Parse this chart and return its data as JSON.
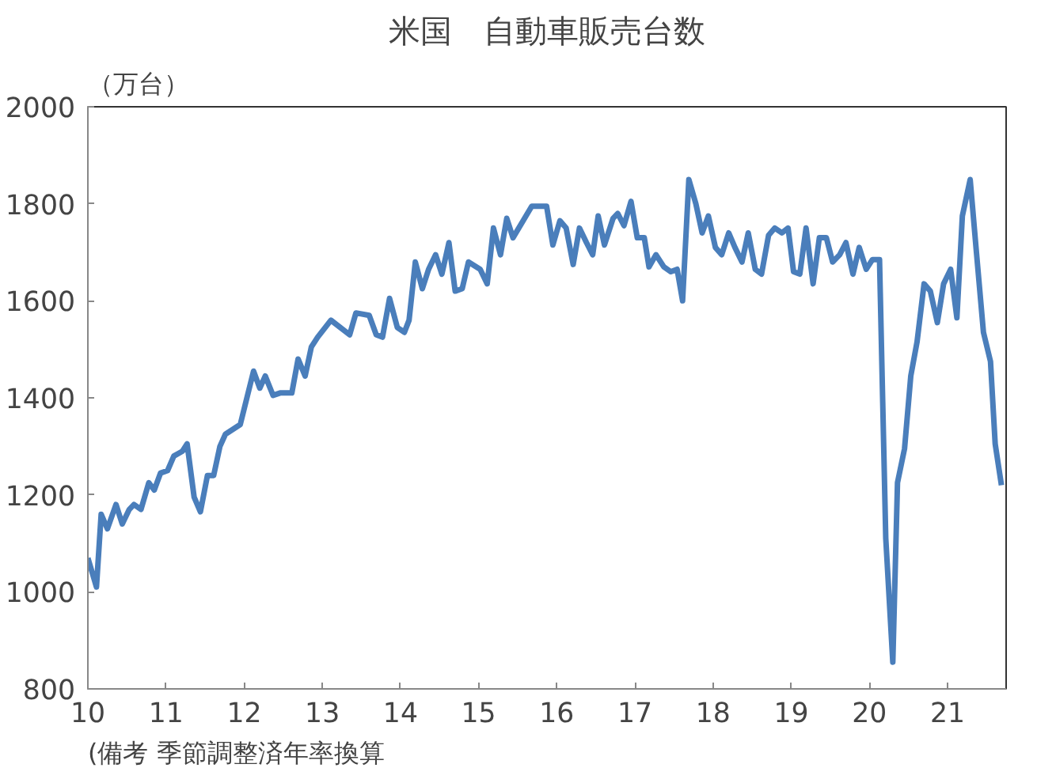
{
  "chart_data": {
    "type": "line",
    "title": "米国　自動車販売台数",
    "ylabel": "（万台）",
    "annotations": [
      "(備考 季節調整済年率換算"
    ],
    "x": [
      10.0,
      10.11,
      10.17,
      10.25,
      10.36,
      10.44,
      10.53,
      10.59,
      10.68,
      10.78,
      10.85,
      10.93,
      11.02,
      11.1,
      11.21,
      11.27,
      11.36,
      11.44,
      11.53,
      11.61,
      11.69,
      11.76,
      11.95,
      12.12,
      12.2,
      12.27,
      12.37,
      12.46,
      12.61,
      12.69,
      12.78,
      12.86,
      12.94,
      13.11,
      13.35,
      13.43,
      13.6,
      13.69,
      13.77,
      13.86,
      13.96,
      14.05,
      14.11,
      14.19,
      14.28,
      14.36,
      14.45,
      14.53,
      14.62,
      14.7,
      14.79,
      14.87,
      15.02,
      15.11,
      15.19,
      15.28,
      15.36,
      15.44,
      15.68,
      15.76,
      15.87,
      15.95,
      16.04,
      16.12,
      16.21,
      16.29,
      16.38,
      16.46,
      16.53,
      16.61,
      16.72,
      16.78,
      16.86,
      16.95,
      17.03,
      17.12,
      17.18,
      17.27,
      17.37,
      17.46,
      17.54,
      17.61,
      17.69,
      17.78,
      17.86,
      17.94,
      18.03,
      18.11,
      18.2,
      18.28,
      18.37,
      18.45,
      18.54,
      18.62,
      18.71,
      18.79,
      18.88,
      18.96,
      19.03,
      19.11,
      19.19,
      19.28,
      19.36,
      19.45,
      19.53,
      19.62,
      19.7,
      19.79,
      19.87,
      19.96,
      20.04,
      20.13,
      20.21,
      20.3,
      20.36,
      20.45,
      20.53,
      20.61,
      20.7,
      20.78,
      20.87,
      20.95,
      21.04,
      21.12,
      21.19,
      21.29,
      21.37,
      21.46,
      21.55,
      21.61,
      21.69
    ],
    "series": [
      {
        "color": "#4a7ebb",
        "values": [
          1070,
          1010,
          1160,
          1130,
          1180,
          1140,
          1170,
          1180,
          1170,
          1225,
          1210,
          1245,
          1250,
          1280,
          1290,
          1305,
          1195,
          1165,
          1240,
          1240,
          1300,
          1325,
          1345,
          1455,
          1420,
          1445,
          1405,
          1410,
          1410,
          1480,
          1445,
          1505,
          1525,
          1560,
          1530,
          1575,
          1570,
          1530,
          1525,
          1605,
          1545,
          1535,
          1560,
          1680,
          1625,
          1665,
          1695,
          1655,
          1720,
          1620,
          1625,
          1680,
          1665,
          1635,
          1750,
          1695,
          1770,
          1730,
          1795,
          1795,
          1795,
          1715,
          1765,
          1750,
          1675,
          1750,
          1720,
          1695,
          1775,
          1715,
          1770,
          1780,
          1755,
          1805,
          1730,
          1730,
          1670,
          1695,
          1670,
          1660,
          1665,
          1600,
          1850,
          1800,
          1740,
          1775,
          1710,
          1695,
          1740,
          1710,
          1680,
          1740,
          1665,
          1655,
          1735,
          1750,
          1740,
          1750,
          1660,
          1655,
          1750,
          1635,
          1730,
          1730,
          1680,
          1695,
          1720,
          1655,
          1710,
          1665,
          1685,
          1685,
          1110,
          855,
          1225,
          1295,
          1445,
          1515,
          1635,
          1620,
          1555,
          1635,
          1665,
          1565,
          1775,
          1850,
          1700,
          1535,
          1475,
          1305,
          1220
        ]
      }
    ],
    "xlim": [
      10,
      21.75
    ],
    "xticks": [
      10,
      11,
      12,
      13,
      14,
      15,
      16,
      17,
      18,
      19,
      20,
      21
    ],
    "ylim": [
      800,
      2000
    ],
    "yticks": [
      800,
      1000,
      1200,
      1400,
      1600,
      1800,
      2000
    ],
    "marker": "none",
    "line_style": "solid"
  }
}
